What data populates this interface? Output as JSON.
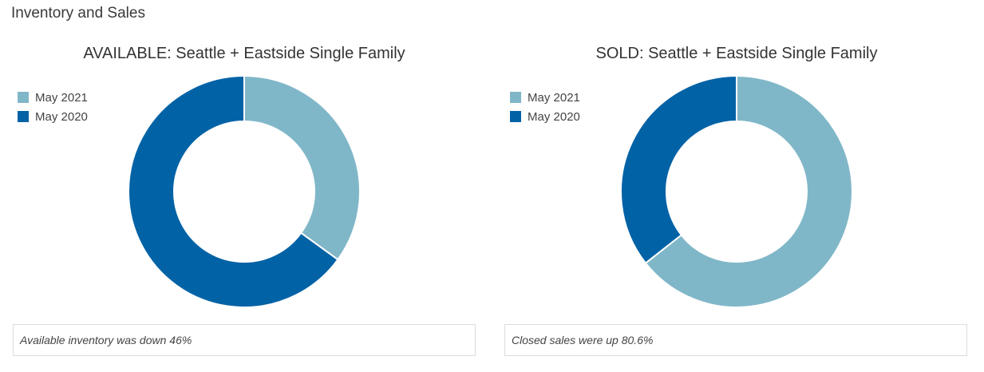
{
  "page": {
    "title": "Inventory and Sales"
  },
  "chart_data": [
    {
      "type": "pie",
      "title": "AVAILABLE: Seattle + Eastside Single Family",
      "categories": [
        "May 2021",
        "May 2020"
      ],
      "values": [
        35,
        65
      ],
      "colors": [
        "#80b7c8",
        "#0262a6"
      ],
      "legend_position": "top-left",
      "caption": "Available inventory was down 46%"
    },
    {
      "type": "pie",
      "title": "SOLD: Seattle + Eastside Single Family",
      "categories": [
        "May 2021",
        "May 2020"
      ],
      "values": [
        64.4,
        35.6
      ],
      "colors": [
        "#80b7c8",
        "#0262a6"
      ],
      "legend_position": "top-left",
      "caption": "Closed sales were up 80.6%"
    }
  ]
}
